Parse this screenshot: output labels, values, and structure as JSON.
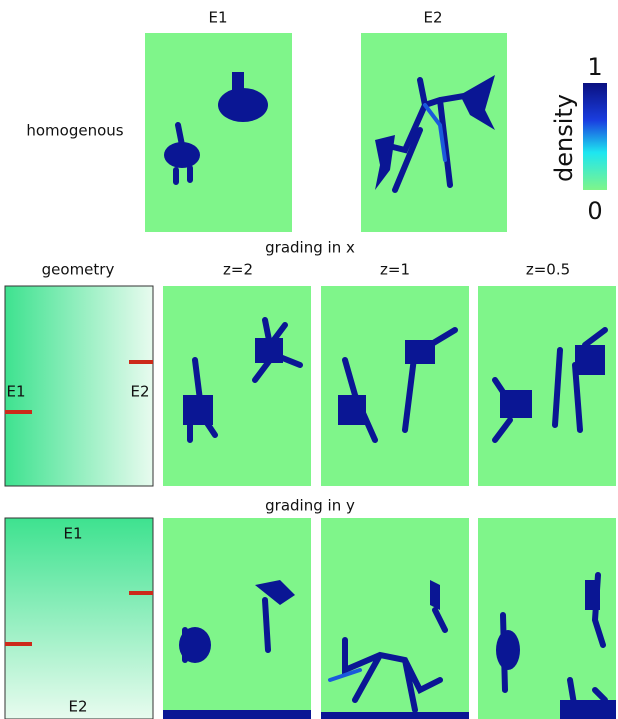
{
  "header": {
    "col1": "E1",
    "col2": "E2",
    "row_label": "homogenous"
  },
  "colorbar": {
    "label": "density",
    "max": "1",
    "min": "0"
  },
  "grading_x": {
    "title": "grading in x",
    "geometry": "geometry",
    "z1": "z=2",
    "z2": "z=1",
    "z3": "z=0.5",
    "left": "E1",
    "right": "E2"
  },
  "grading_y": {
    "title": "grading in y",
    "top": "E1",
    "bottom": "E2"
  }
}
